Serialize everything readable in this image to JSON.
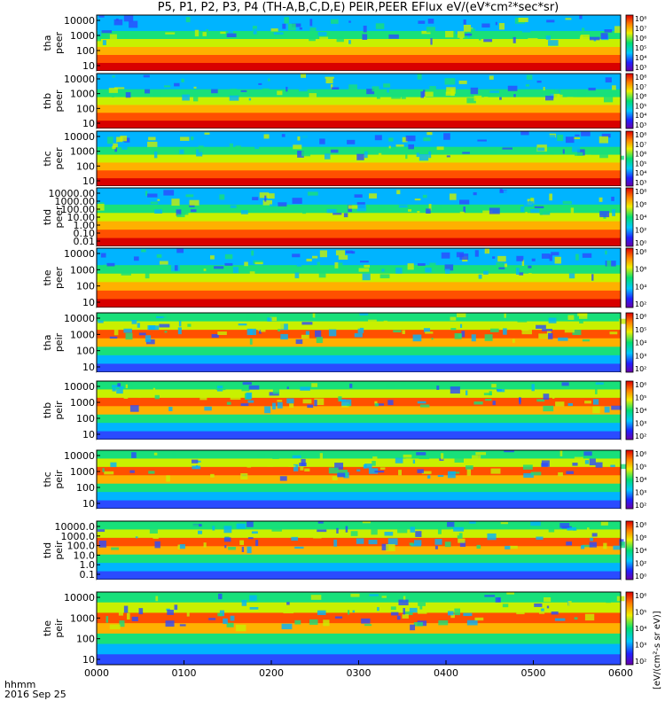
{
  "title": "P5, P1, P2, P3, P4 (TH-A,B,C,D,E) PEIR,PEER EFlux eV/(eV*cm²*sec*sr)",
  "colorbar_unit": "[eV/(cm²-s sr eV)]",
  "xaxis": {
    "name": "hhmm",
    "date": "2016 Sep 25"
  },
  "chart_data": {
    "type": "heatmap",
    "title": "P5, P1, P2, P3, P4 (TH-A,B,C,D,E) PEIR,PEER EFlux eV/(eV*cm²*sec*sr)",
    "xlabel": "hhmm",
    "x_ticks": [
      "0000",
      "0100",
      "0200",
      "0300",
      "0400",
      "0500",
      "0600"
    ],
    "x_range": [
      "0000",
      "0600"
    ],
    "y_scale": "log",
    "z_scale": "log",
    "colormap": "rainbow (purple-blue-cyan-green-yellow-red)",
    "panels": [
      {
        "label_top": "tha",
        "label_bottom": "peer",
        "y_ticks": [
          "10000",
          "1000",
          "100",
          "10"
        ],
        "colorbar_ticks": [
          "10⁸",
          "10⁷",
          "10⁶",
          "10⁵",
          "10⁴",
          "10³"
        ]
      },
      {
        "label_top": "thb",
        "label_bottom": "peer",
        "y_ticks": [
          "10000",
          "1000",
          "100",
          "10"
        ],
        "colorbar_ticks": [
          "10⁸",
          "10⁷",
          "10⁶",
          "10⁵",
          "10⁴",
          "10³"
        ]
      },
      {
        "label_top": "thc",
        "label_bottom": "peer",
        "y_ticks": [
          "10000",
          "1000",
          "100",
          "10"
        ],
        "colorbar_ticks": [
          "10⁸",
          "10⁷",
          "10⁶",
          "10⁵",
          "10⁴",
          "10³"
        ]
      },
      {
        "label_top": "thd",
        "label_bottom": "peer",
        "y_ticks": [
          "10000.00",
          "1000.00",
          "100.00",
          "10.00",
          "1.00",
          "0.10",
          "0.01"
        ],
        "colorbar_ticks": [
          "10⁸",
          "10⁶",
          "10⁴",
          "10²",
          "10⁰"
        ]
      },
      {
        "label_top": "the",
        "label_bottom": "peer",
        "y_ticks": [
          "10000",
          "1000",
          "100",
          "10"
        ],
        "colorbar_ticks": [
          "10⁸",
          "10⁶",
          "10⁴",
          "10²"
        ]
      },
      {
        "label_top": "tha",
        "label_bottom": "peir",
        "y_ticks": [
          "10000",
          "1000",
          "100",
          "10"
        ],
        "colorbar_ticks": [
          "10⁶",
          "10⁵",
          "10⁴",
          "10³",
          "10²"
        ]
      },
      {
        "label_top": "thb",
        "label_bottom": "peir",
        "y_ticks": [
          "10000",
          "1000",
          "100",
          "10"
        ],
        "colorbar_ticks": [
          "10⁶",
          "10⁵",
          "10⁴",
          "10³",
          "10²"
        ]
      },
      {
        "label_top": "thc",
        "label_bottom": "peir",
        "y_ticks": [
          "10000",
          "1000",
          "100",
          "10"
        ],
        "colorbar_ticks": [
          "10⁶",
          "10⁵",
          "10⁴",
          "10³",
          "10²"
        ]
      },
      {
        "label_top": "thd",
        "label_bottom": "peir",
        "y_ticks": [
          "10000.0",
          "1000.0",
          "100.0",
          "10.0",
          "1.0",
          "0.1"
        ],
        "colorbar_ticks": [
          "10⁸",
          "10⁶",
          "10⁴",
          "10²",
          "10⁰"
        ]
      },
      {
        "label_top": "the",
        "label_bottom": "peir",
        "y_ticks": [
          "10000",
          "1000",
          "100",
          "10"
        ],
        "colorbar_ticks": [
          "10⁶",
          "10⁵",
          "10⁴",
          "10³",
          "10²"
        ]
      }
    ]
  }
}
